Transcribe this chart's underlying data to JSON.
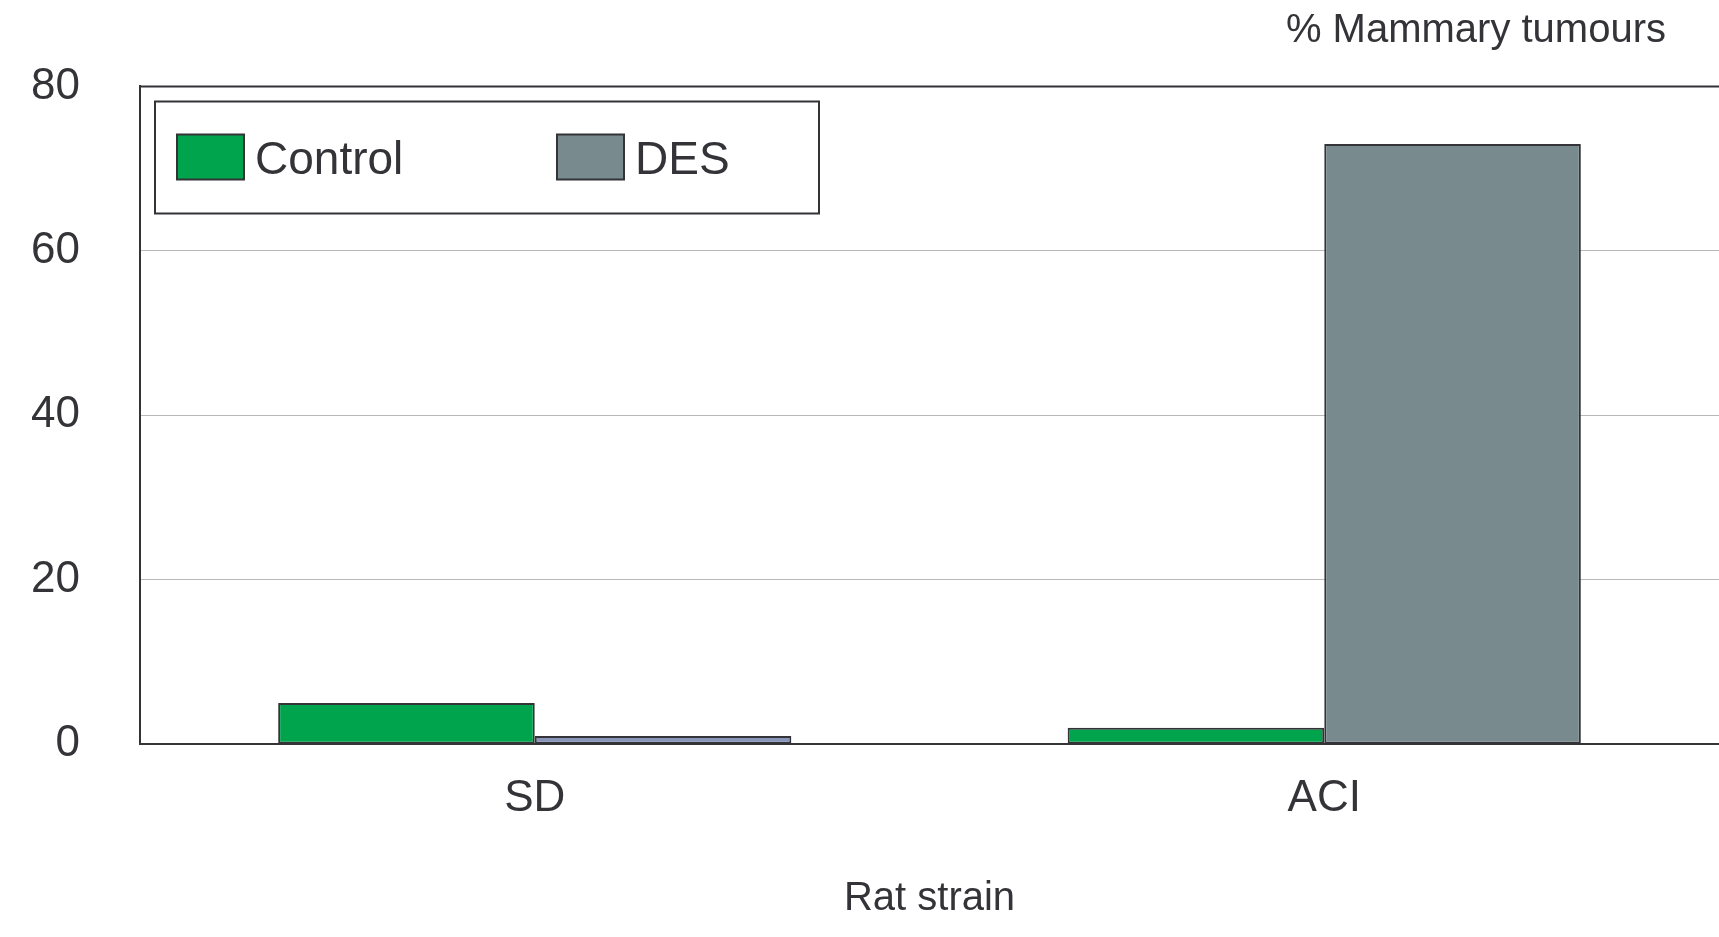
{
  "chart_data": {
    "type": "bar",
    "ylabel": "% Mammary tumours",
    "xlabel": "Rat strain",
    "categories": [
      "SD",
      "ACI"
    ],
    "series": [
      {
        "name": "Control",
        "color": "#00a44c",
        "values": [
          5,
          2
        ]
      },
      {
        "name": "DES",
        "color": "#788a8e",
        "colors": [
          "#8894b8",
          "#788a8e"
        ],
        "values": [
          1,
          73
        ]
      }
    ],
    "ylim": [
      0,
      80
    ],
    "yticks": [
      0,
      20,
      40,
      60,
      80
    ],
    "grid": "y",
    "legend": "top left"
  }
}
